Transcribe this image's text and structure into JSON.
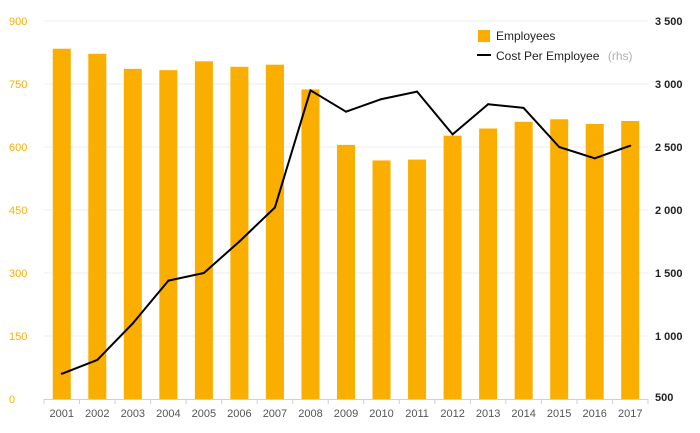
{
  "chart_data": {
    "type": "bar",
    "categories": [
      "2001",
      "2002",
      "2003",
      "2004",
      "2005",
      "2006",
      "2007",
      "2008",
      "2009",
      "2010",
      "2011",
      "2012",
      "2013",
      "2014",
      "2015",
      "2016",
      "2017"
    ],
    "series": [
      {
        "name": "Employees",
        "type": "bar",
        "axis": "left",
        "color": "#F9AE00",
        "values": [
          834,
          822,
          786,
          783,
          804,
          791,
          796,
          737,
          605,
          568,
          570,
          627,
          644,
          660,
          666,
          655,
          662
        ]
      },
      {
        "name": "Cost Per Employee",
        "name_suffix": "(rhs)",
        "type": "line",
        "axis": "right",
        "color": "#000000",
        "values": [
          700,
          810,
          1100,
          1440,
          1500,
          1750,
          2020,
          2950,
          2780,
          2880,
          2940,
          2600,
          2840,
          2810,
          2500,
          2410,
          2510
        ]
      }
    ],
    "y_left": {
      "ylim": [
        0,
        900
      ],
      "ticks": [
        "0",
        "150",
        "300",
        "450",
        "600",
        "750",
        "900"
      ],
      "color": "#F9AE00"
    },
    "y_right": {
      "ylim": [
        500,
        3500
      ],
      "ticks": [
        "500",
        "1 000",
        "1 500",
        "2 000",
        "2 500",
        "3 000",
        "3 500"
      ]
    },
    "grid": true,
    "legend": "top-right"
  }
}
